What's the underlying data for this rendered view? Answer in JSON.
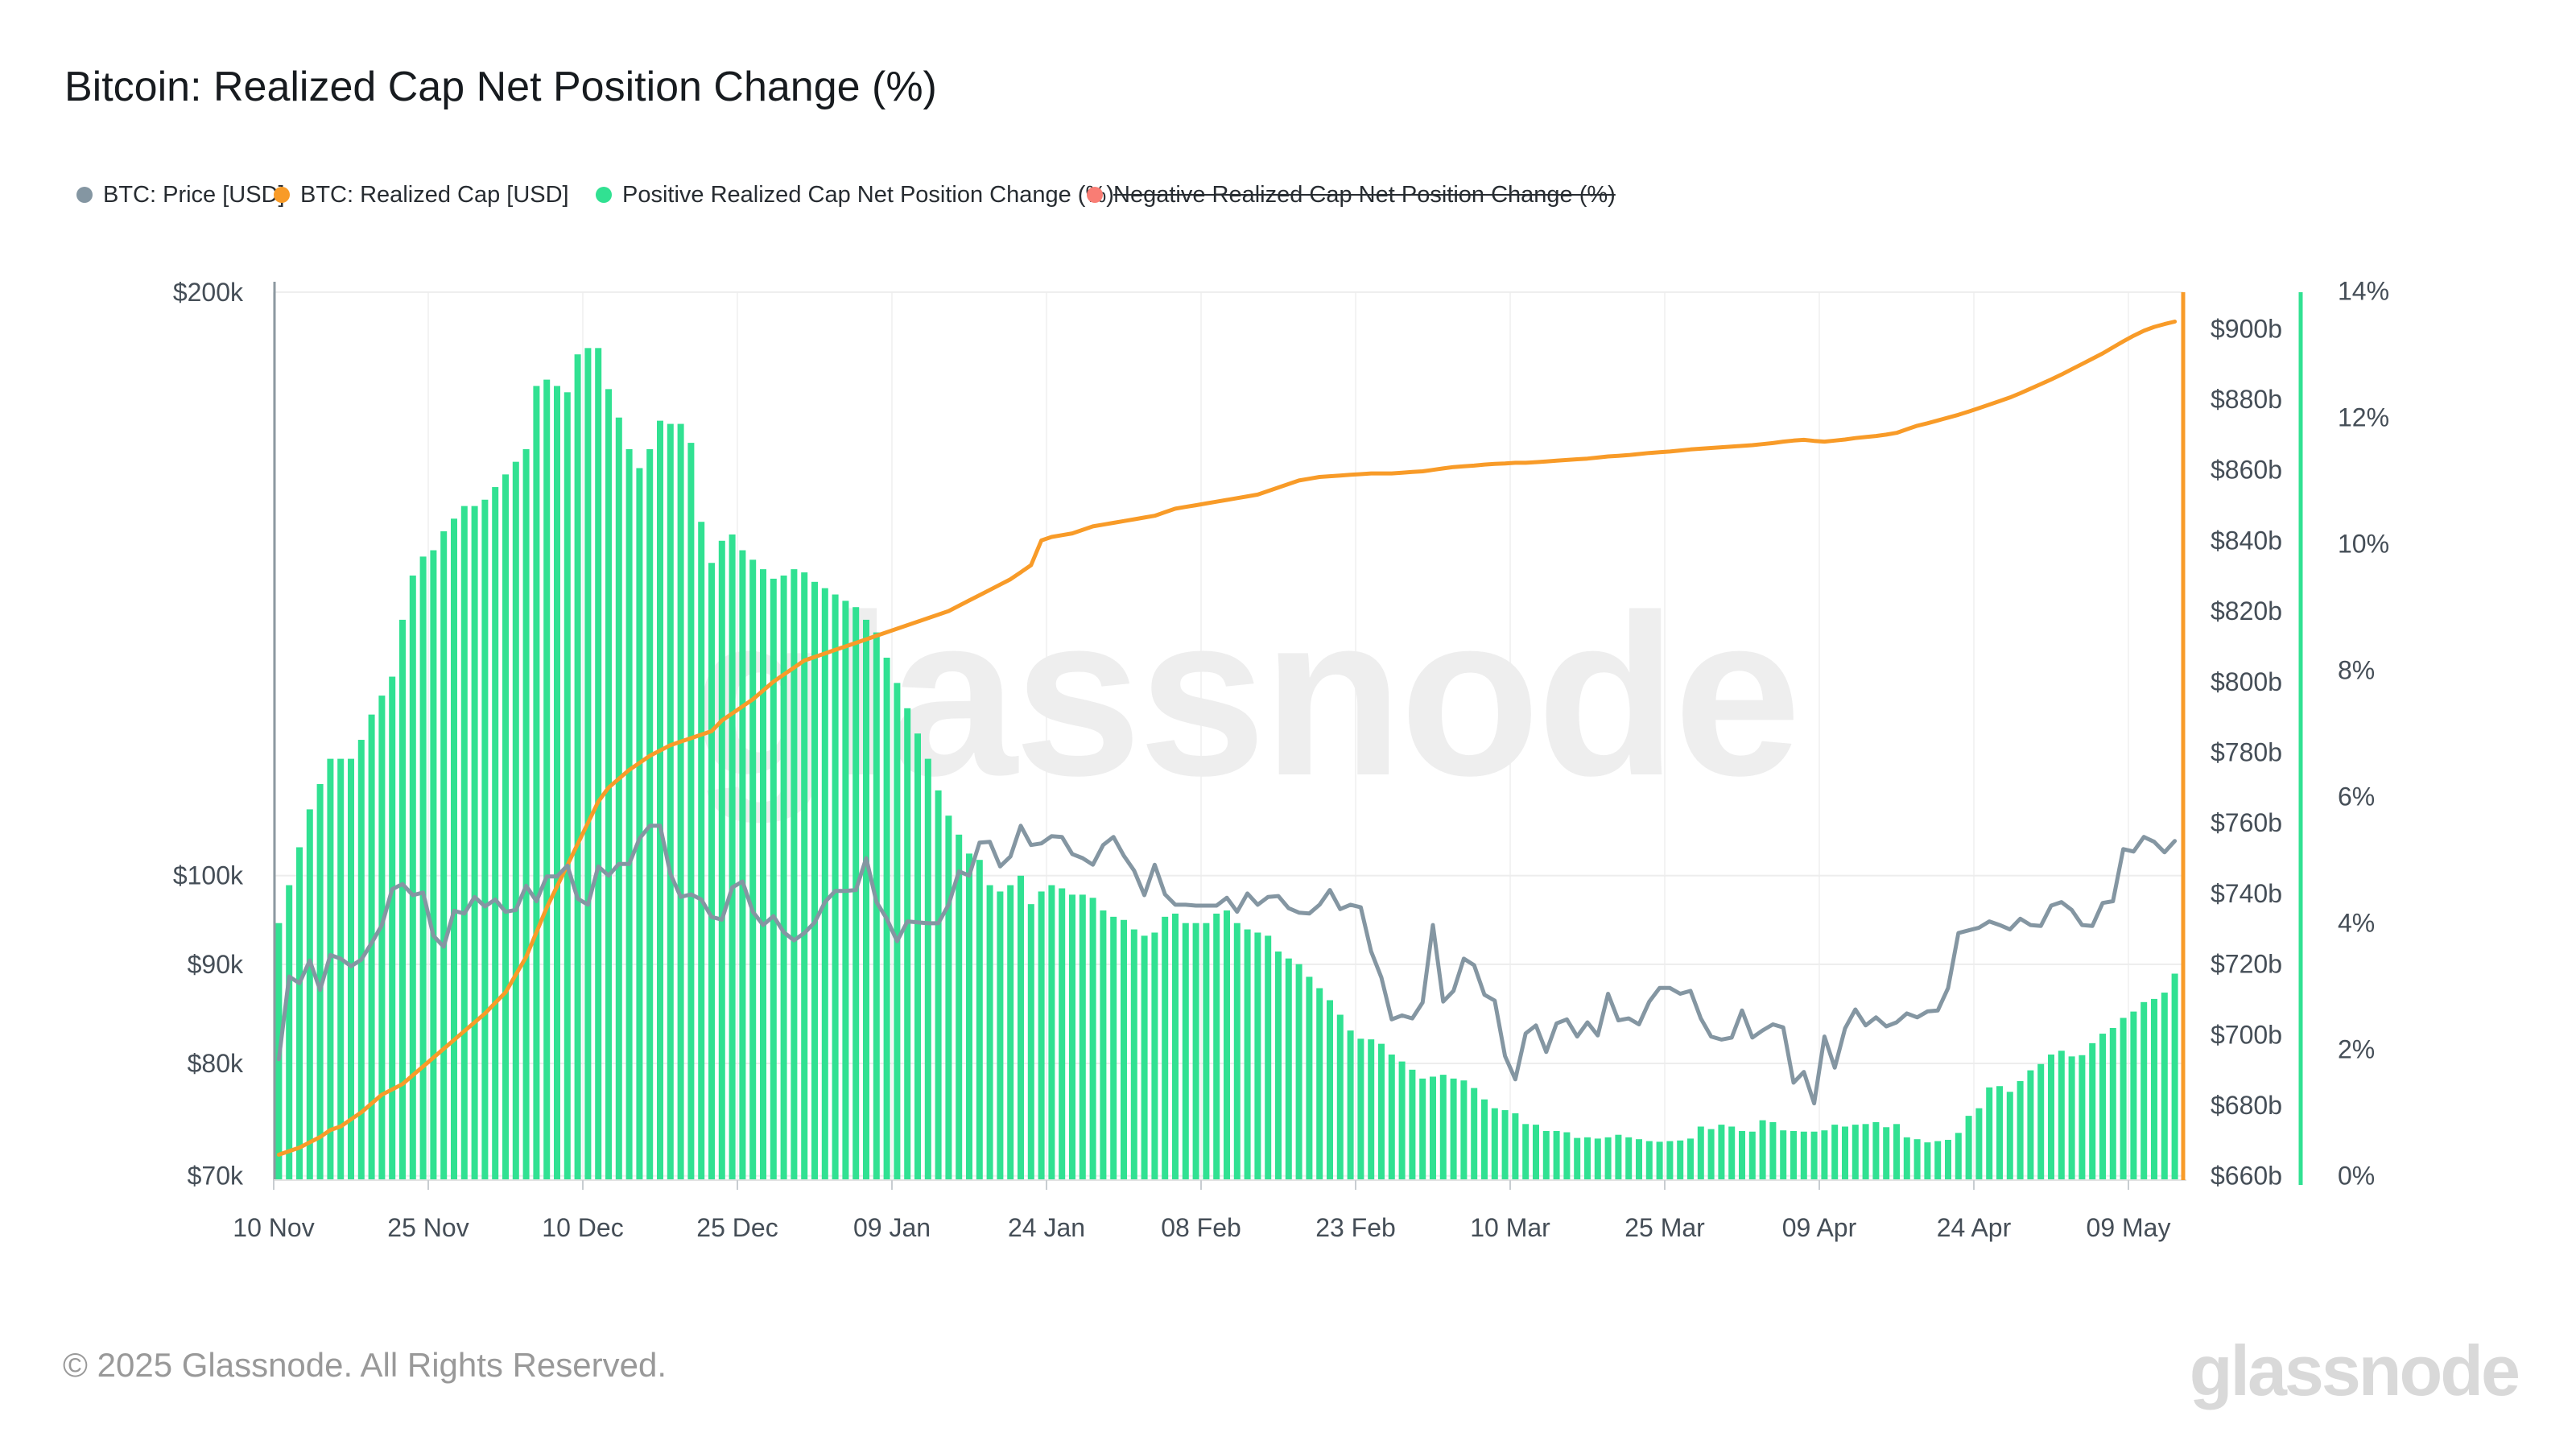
{
  "header": {
    "title": "Bitcoin: Realized Cap Net Position Change (%)"
  },
  "legend": {
    "items": [
      {
        "label": "BTC: Price [USD]",
        "color": "#8496a2",
        "enabled": true
      },
      {
        "label": "BTC: Realized Cap [USD]",
        "color": "#f89b28",
        "enabled": true
      },
      {
        "label": "Positive Realized Cap Net Position Change (%)",
        "color": "#31e192",
        "enabled": true
      },
      {
        "label": "Negative Realized Cap Net Position Change (%)",
        "color": "#f97d74",
        "enabled": false
      }
    ]
  },
  "watermark": "glassnode",
  "footer": {
    "copyright": "© 2025 Glassnode. All Rights Reserved.",
    "brand": "glassnode"
  },
  "chart_data": {
    "type": "combo",
    "title": "Bitcoin: Realized Cap Net Position Change (%)",
    "start_date": "2024-11-10",
    "frequency": "daily",
    "grid": "horizontal-price-levels",
    "x_ticks": [
      {
        "label": "10 Nov",
        "day": 0
      },
      {
        "label": "25 Nov",
        "day": 15
      },
      {
        "label": "10 Dec",
        "day": 30
      },
      {
        "label": "25 Dec",
        "day": 45
      },
      {
        "label": "09 Jan",
        "day": 60
      },
      {
        "label": "24 Jan",
        "day": 75
      },
      {
        "label": "08 Feb",
        "day": 90
      },
      {
        "label": "23 Feb",
        "day": 105
      },
      {
        "label": "10 Mar",
        "day": 120
      },
      {
        "label": "25 Mar",
        "day": 135
      },
      {
        "label": "09 Apr",
        "day": 150
      },
      {
        "label": "24 Apr",
        "day": 165
      },
      {
        "label": "09 May",
        "day": 180
      }
    ],
    "price_axis": {
      "side": "left",
      "scale": "log",
      "unit": "USD",
      "ticks": [
        {
          "label": "$200k",
          "value": 200
        },
        {
          "label": "$100k",
          "value": 100
        },
        {
          "label": "$90k",
          "value": 90
        },
        {
          "label": "$80k",
          "value": 80
        },
        {
          "label": "$70k",
          "value": 70
        }
      ]
    },
    "cap_axis": {
      "side": "right",
      "scale": "linear",
      "unit": "USD billions",
      "range": [
        660,
        908
      ],
      "ticks": [
        {
          "label": "$900b",
          "value": 900
        },
        {
          "label": "$880b",
          "value": 880
        },
        {
          "label": "$860b",
          "value": 860
        },
        {
          "label": "$840b",
          "value": 840
        },
        {
          "label": "$820b",
          "value": 820
        },
        {
          "label": "$800b",
          "value": 800
        },
        {
          "label": "$780b",
          "value": 780
        },
        {
          "label": "$760b",
          "value": 760
        },
        {
          "label": "$740b",
          "value": 740
        },
        {
          "label": "$720b",
          "value": 720
        },
        {
          "label": "$700b",
          "value": 700
        },
        {
          "label": "$680b",
          "value": 680
        },
        {
          "label": "$660b",
          "value": 660
        }
      ]
    },
    "pct_axis": {
      "side": "right",
      "scale": "linear",
      "unit": "%",
      "range": [
        0,
        14
      ],
      "ticks": [
        {
          "label": "14%",
          "value": 14
        },
        {
          "label": "12%",
          "value": 12
        },
        {
          "label": "10%",
          "value": 10
        },
        {
          "label": "8%",
          "value": 8
        },
        {
          "label": "6%",
          "value": 6
        },
        {
          "label": "4%",
          "value": 4
        },
        {
          "label": "2%",
          "value": 2
        },
        {
          "label": "0%",
          "value": 0
        }
      ]
    },
    "series": [
      {
        "name": "BTC: Price [USD]",
        "type": "line",
        "axis": "price",
        "color": "#8496a2",
        "unit": "USD thousands",
        "values": [
          80.4,
          88.7,
          88.0,
          90.4,
          87.3,
          91.0,
          90.6,
          89.8,
          90.5,
          92.3,
          94.3,
          98.4,
          99.0,
          97.7,
          98.0,
          93.1,
          91.9,
          95.9,
          95.6,
          97.5,
          96.4,
          97.2,
          95.8,
          96.0,
          98.8,
          97.0,
          99.9,
          99.9,
          101.2,
          97.3,
          96.6,
          101.1,
          100.0,
          101.4,
          101.4,
          104.5,
          106.1,
          106.1,
          100.2,
          97.5,
          97.8,
          97.2,
          95.2,
          94.9,
          98.6,
          99.3,
          95.8,
          94.3,
          95.3,
          93.5,
          92.6,
          93.4,
          94.6,
          96.9,
          98.2,
          98.2,
          98.3,
          102.1,
          96.9,
          95.0,
          92.5,
          94.7,
          94.6,
          94.5,
          94.5,
          96.6,
          100.5,
          100.0,
          104.0,
          104.1,
          101.1,
          102.3,
          106.1,
          103.7,
          103.9,
          104.8,
          104.7,
          102.6,
          102.1,
          101.3,
          103.7,
          104.7,
          102.4,
          100.6,
          97.7,
          101.3,
          97.8,
          96.6,
          96.6,
          96.5,
          96.5,
          96.5,
          97.4,
          95.8,
          97.9,
          96.6,
          97.5,
          97.6,
          96.2,
          95.7,
          95.6,
          96.6,
          98.3,
          96.1,
          96.6,
          96.3,
          91.4,
          88.6,
          84.3,
          84.7,
          84.4,
          86.0,
          94.3,
          86.1,
          87.2,
          90.6,
          89.9,
          86.8,
          86.2,
          80.7,
          78.5,
          82.9,
          83.7,
          81.1,
          83.9,
          84.3,
          82.6,
          84.0,
          82.7,
          86.9,
          84.2,
          84.4,
          83.8,
          86.1,
          87.5,
          87.5,
          86.9,
          87.2,
          84.4,
          82.6,
          82.3,
          82.5,
          85.2,
          82.5,
          83.2,
          83.8,
          83.5,
          78.2,
          79.2,
          76.3,
          82.6,
          79.6,
          83.4,
          85.3,
          83.7,
          84.5,
          83.6,
          84.0,
          84.9,
          84.5,
          85.1,
          85.2,
          87.5,
          93.4,
          93.7,
          94.0,
          94.7,
          94.3,
          93.8,
          95.0,
          94.3,
          94.2,
          96.5,
          96.9,
          96.0,
          94.3,
          94.2,
          96.8,
          97.0,
          103.2,
          102.9,
          104.7,
          104.1,
          102.8,
          104.2
        ]
      },
      {
        "name": "BTC: Realized Cap [USD]",
        "type": "line",
        "axis": "cap",
        "color": "#f89b28",
        "unit": "USD billions",
        "values": [
          666,
          667,
          668,
          669.5,
          671,
          673,
          674,
          676,
          678,
          680.5,
          683,
          684.5,
          686,
          688.5,
          691,
          693.5,
          696,
          698.5,
          701,
          703.5,
          706,
          709,
          712,
          717,
          722,
          729,
          736,
          742,
          748,
          754,
          760,
          766,
          770,
          772.5,
          775,
          777,
          779,
          780.5,
          782,
          783,
          784,
          785,
          786,
          789,
          791,
          793,
          795,
          797.5,
          800,
          802,
          804,
          806,
          807,
          808,
          809,
          810,
          811,
          812,
          813,
          814,
          815,
          816,
          817,
          818,
          819,
          820,
          821.5,
          823,
          824.5,
          826,
          827.5,
          829,
          831,
          833,
          840,
          841,
          841.5,
          842,
          843,
          844,
          844.5,
          845,
          845.5,
          846,
          846.5,
          847,
          848,
          849,
          849.5,
          850,
          850.5,
          851,
          851.5,
          852,
          852.5,
          853,
          854,
          855,
          856,
          857,
          857.5,
          858,
          858.2,
          858.4,
          858.6,
          858.8,
          859,
          859,
          859,
          859.2,
          859.4,
          859.6,
          860,
          860.4,
          860.8,
          861,
          861.2,
          861.5,
          861.7,
          861.8,
          862,
          862,
          862.2,
          862.4,
          862.6,
          862.8,
          863,
          863.2,
          863.5,
          863.8,
          864,
          864.2,
          864.5,
          864.8,
          865,
          865.2,
          865.5,
          865.8,
          866,
          866.2,
          866.4,
          866.6,
          866.8,
          867,
          867.3,
          867.6,
          868,
          868.3,
          868.5,
          868.2,
          868,
          868.3,
          868.6,
          869,
          869.3,
          869.6,
          870,
          870.5,
          871.5,
          872.5,
          873.2,
          874,
          874.8,
          875.6,
          876.5,
          877.5,
          878.5,
          879.5,
          880.5,
          881.7,
          883,
          884.3,
          885.6,
          887,
          888.5,
          890,
          891.5,
          893,
          894.7,
          896.4,
          898,
          899.4,
          900.5,
          901.3,
          902
        ]
      },
      {
        "name": "Positive Realized Cap Net Position Change (%)",
        "type": "bar",
        "axis": "pct",
        "color": "#31e192",
        "unit": "%",
        "values": [
          4.0,
          4.6,
          5.2,
          5.8,
          6.2,
          6.6,
          6.6,
          6.6,
          6.9,
          7.3,
          7.6,
          7.9,
          8.8,
          9.5,
          9.8,
          9.9,
          10.2,
          10.4,
          10.6,
          10.6,
          10.7,
          10.9,
          11.1,
          11.3,
          11.5,
          12.5,
          12.6,
          12.5,
          12.4,
          13.0,
          13.1,
          13.1,
          12.45,
          12.0,
          11.5,
          11.2,
          11.5,
          11.95,
          11.9,
          11.9,
          11.6,
          10.35,
          9.7,
          10.05,
          10.15,
          9.9,
          9.75,
          9.6,
          9.45,
          9.5,
          9.6,
          9.55,
          9.4,
          9.3,
          9.2,
          9.1,
          9.0,
          8.8,
          8.6,
          8.2,
          7.8,
          7.4,
          7.0,
          6.6,
          6.1,
          5.7,
          5.4,
          5.1,
          5.0,
          4.6,
          4.5,
          4.6,
          4.75,
          4.3,
          4.5,
          4.6,
          4.55,
          4.45,
          4.45,
          4.4,
          4.2,
          4.1,
          4.05,
          3.9,
          3.8,
          3.85,
          4.1,
          4.15,
          4.0,
          4.0,
          4.0,
          4.15,
          4.2,
          4.0,
          3.9,
          3.85,
          3.8,
          3.55,
          3.44,
          3.35,
          3.15,
          2.97,
          2.78,
          2.55,
          2.3,
          2.17,
          2.16,
          2.09,
          1.92,
          1.81,
          1.68,
          1.54,
          1.57,
          1.6,
          1.54,
          1.51,
          1.39,
          1.21,
          1.07,
          1.04,
          0.99,
          0.82,
          0.81,
          0.71,
          0.71,
          0.69,
          0.6,
          0.61,
          0.59,
          0.61,
          0.65,
          0.61,
          0.58,
          0.55,
          0.54,
          0.55,
          0.56,
          0.59,
          0.78,
          0.74,
          0.81,
          0.78,
          0.71,
          0.7,
          0.88,
          0.85,
          0.72,
          0.71,
          0.7,
          0.7,
          0.72,
          0.81,
          0.78,
          0.81,
          0.82,
          0.85,
          0.77,
          0.82,
          0.61,
          0.58,
          0.53,
          0.55,
          0.57,
          0.68,
          0.95,
          1.07,
          1.4,
          1.42,
          1.33,
          1.5,
          1.67,
          1.77,
          1.92,
          1.98,
          1.89,
          1.91,
          2.1,
          2.25,
          2.34,
          2.5,
          2.6,
          2.75,
          2.8,
          2.9,
          3.2
        ]
      },
      {
        "name": "Negative Realized Cap Net Position Change (%)",
        "type": "bar",
        "axis": "pct",
        "color": "#f97d74",
        "unit": "%",
        "hidden": true,
        "values": []
      }
    ]
  }
}
